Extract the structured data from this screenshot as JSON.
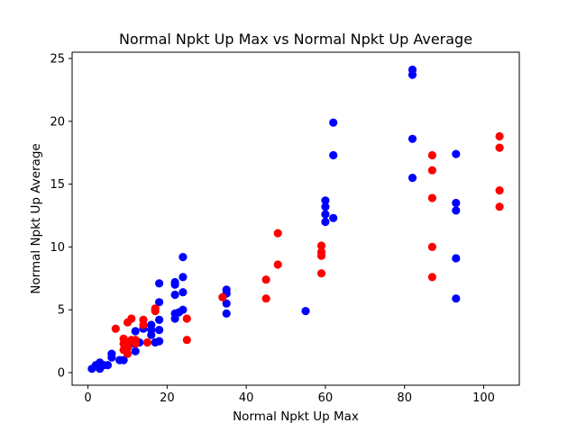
{
  "chart_data": {
    "type": "scatter",
    "title": "Normal Npkt Up Max vs Normal Npkt Up Average",
    "xlabel": "Normal Npkt Up Max",
    "ylabel": "Normal Npkt Up Average",
    "xlim": [
      -4,
      109
    ],
    "ylim": [
      -1,
      25.5
    ],
    "xticks": [
      0,
      20,
      40,
      60,
      80,
      100
    ],
    "yticks": [
      0,
      5,
      10,
      15,
      20,
      25
    ],
    "grid": false,
    "legend": "none",
    "series": [
      {
        "color": "#0000ff",
        "points": [
          [
            1,
            0.3
          ],
          [
            2,
            0.6
          ],
          [
            3,
            0.8
          ],
          [
            3,
            0.3
          ],
          [
            4,
            0.6
          ],
          [
            5,
            0.6
          ],
          [
            6,
            1.5
          ],
          [
            6,
            1.2
          ],
          [
            8,
            1.0
          ],
          [
            9,
            1.0
          ],
          [
            10,
            2.0
          ],
          [
            11,
            2.3
          ],
          [
            12,
            1.7
          ],
          [
            12,
            3.3
          ],
          [
            13,
            2.4
          ],
          [
            14,
            3.5
          ],
          [
            16,
            3.8
          ],
          [
            16,
            3.4
          ],
          [
            16,
            3.0
          ],
          [
            17,
            2.4
          ],
          [
            18,
            2.5
          ],
          [
            18,
            3.4
          ],
          [
            18,
            4.2
          ],
          [
            18,
            5.6
          ],
          [
            18,
            7.1
          ],
          [
            22,
            4.3
          ],
          [
            22,
            4.7
          ],
          [
            22,
            6.2
          ],
          [
            22,
            7.0
          ],
          [
            22,
            7.2
          ],
          [
            23,
            4.8
          ],
          [
            24,
            5.0
          ],
          [
            24,
            6.4
          ],
          [
            24,
            7.6
          ],
          [
            24,
            9.2
          ],
          [
            35,
            4.7
          ],
          [
            35,
            5.5
          ],
          [
            35,
            6.3
          ],
          [
            35,
            6.6
          ],
          [
            55,
            4.9
          ],
          [
            60,
            12.0
          ],
          [
            60,
            12.6
          ],
          [
            60,
            13.2
          ],
          [
            60,
            13.7
          ],
          [
            62,
            12.3
          ],
          [
            62,
            17.3
          ],
          [
            62,
            19.9
          ],
          [
            82,
            15.5
          ],
          [
            82,
            18.6
          ],
          [
            82,
            23.7
          ],
          [
            82,
            24.1
          ],
          [
            93,
            5.9
          ],
          [
            93,
            9.1
          ],
          [
            93,
            12.9
          ],
          [
            93,
            13.5
          ],
          [
            93,
            17.4
          ]
        ]
      },
      {
        "color": "#ff0000",
        "points": [
          [
            7,
            3.5
          ],
          [
            9,
            1.8
          ],
          [
            9,
            2.3
          ],
          [
            9,
            2.7
          ],
          [
            10,
            1.5
          ],
          [
            10,
            2.0
          ],
          [
            10,
            2.4
          ],
          [
            10,
            4.0
          ],
          [
            11,
            4.3
          ],
          [
            11,
            2.6
          ],
          [
            12,
            2.3
          ],
          [
            12,
            2.6
          ],
          [
            14,
            3.8
          ],
          [
            14,
            4.2
          ],
          [
            15,
            2.4
          ],
          [
            17,
            4.9
          ],
          [
            17,
            5.1
          ],
          [
            25,
            2.6
          ],
          [
            25,
            4.3
          ],
          [
            34,
            6.0
          ],
          [
            45,
            5.9
          ],
          [
            45,
            7.4
          ],
          [
            48,
            8.6
          ],
          [
            48,
            11.1
          ],
          [
            59,
            7.9
          ],
          [
            59,
            9.3
          ],
          [
            59,
            9.6
          ],
          [
            59,
            10.1
          ],
          [
            87,
            7.6
          ],
          [
            87,
            10.0
          ],
          [
            87,
            13.9
          ],
          [
            87,
            16.1
          ],
          [
            87,
            17.3
          ],
          [
            104,
            13.2
          ],
          [
            104,
            14.5
          ],
          [
            104,
            17.9
          ],
          [
            104,
            18.8
          ]
        ]
      }
    ]
  }
}
